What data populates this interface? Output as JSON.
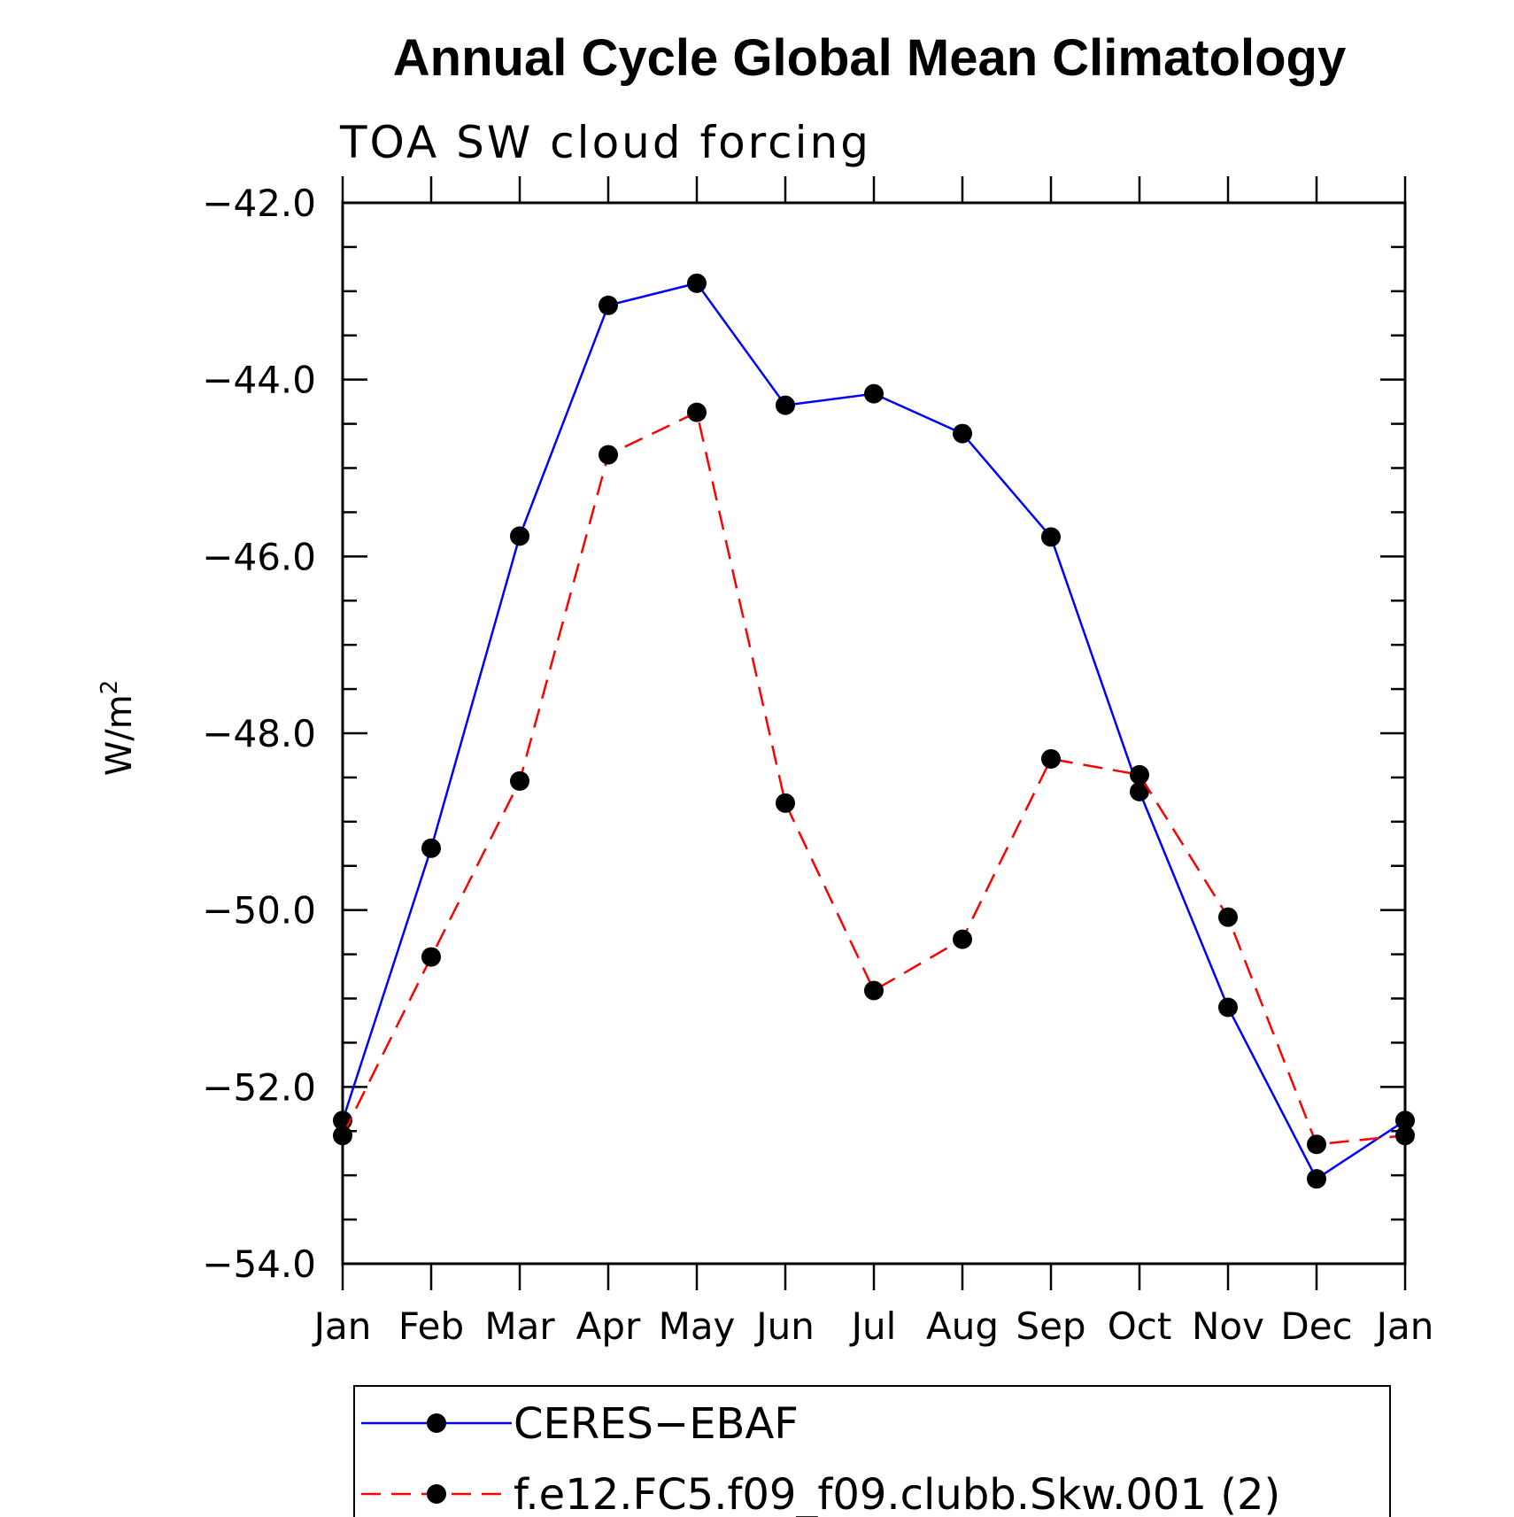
{
  "chart_data": {
    "type": "line",
    "title": "Annual Cycle Global Mean Climatology",
    "subtitle": "TOA SW cloud forcing",
    "ylabel": "W/m",
    "ylabel_sup": "2",
    "xlabel": "",
    "categories": [
      "Jan",
      "Feb",
      "Mar",
      "Apr",
      "May",
      "Jun",
      "Jul",
      "Aug",
      "Sep",
      "Oct",
      "Nov",
      "Dec",
      "Jan"
    ],
    "ylim": [
      -54.0,
      -42.0
    ],
    "yticks": [
      -42.0,
      -44.0,
      -46.0,
      -48.0,
      -50.0,
      -52.0,
      -54.0
    ],
    "ytick_labels": [
      "−42.0",
      "−44.0",
      "−46.0",
      "−48.0",
      "−50.0",
      "−52.0",
      "−54.0"
    ],
    "grid": false,
    "legend_position": "bottom",
    "series": [
      {
        "name": "CERES−EBAF",
        "color": "#0000ff",
        "style": "solid",
        "values": [
          -52.38,
          -49.3,
          -45.77,
          -43.16,
          -42.91,
          -44.29,
          -44.16,
          -44.61,
          -45.78,
          -48.66,
          -51.1,
          -53.04,
          -52.38
        ]
      },
      {
        "name": "f.e12.FC5.f09_f09.clubb.Skw.001 (2)",
        "color": "#ff0000",
        "style": "dashed",
        "values": [
          -52.55,
          -50.53,
          -48.54,
          -44.85,
          -44.37,
          -48.79,
          -50.91,
          -50.33,
          -48.29,
          -48.47,
          -50.08,
          -52.65,
          -52.55
        ]
      }
    ]
  }
}
